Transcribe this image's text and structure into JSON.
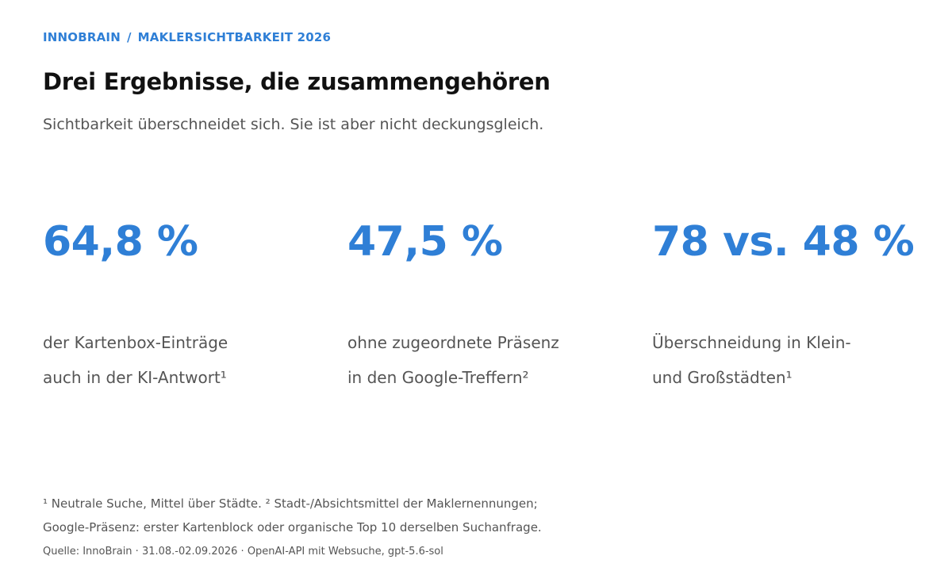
{
  "kicker": {
    "brand": "INNOBRAIN",
    "separator": "/",
    "topic": "MAKLERSICHTBARKEIT 2026"
  },
  "title": "Drei Ergebnisse, die zusammengehören",
  "subtitle": "Sichtbarkeit überschneidet sich. Sie ist aber nicht deckungsgleich.",
  "stats": [
    {
      "value": "64,8 %",
      "label_line1": "der Kartenbox-Einträge",
      "label_line2": "auch in der KI-Antwort¹"
    },
    {
      "value": "47,5 %",
      "label_line1": "ohne zugeordnete Präsenz",
      "label_line2": "in den Google-Treffern²"
    },
    {
      "value": "78 vs. 48 %",
      "label_line1": "Überschneidung in Klein-",
      "label_line2": "und Großstädten¹"
    }
  ],
  "footnotes": {
    "line1": "¹ Neutrale Suche, Mittel über Städte. ² Stadt-/Absichtsmittel der Maklernennungen;",
    "line2": "Google-Präsenz: erster Kartenblock oder organische Top 10 derselben Suchanfrage."
  },
  "source": "Quelle: InnoBrain · 31.08.-02.09.2026 · OpenAI-API mit Websuche, gpt-5.6-sol",
  "colors": {
    "accent": "#2f7fd6",
    "text": "#111111",
    "muted": "#555555"
  }
}
